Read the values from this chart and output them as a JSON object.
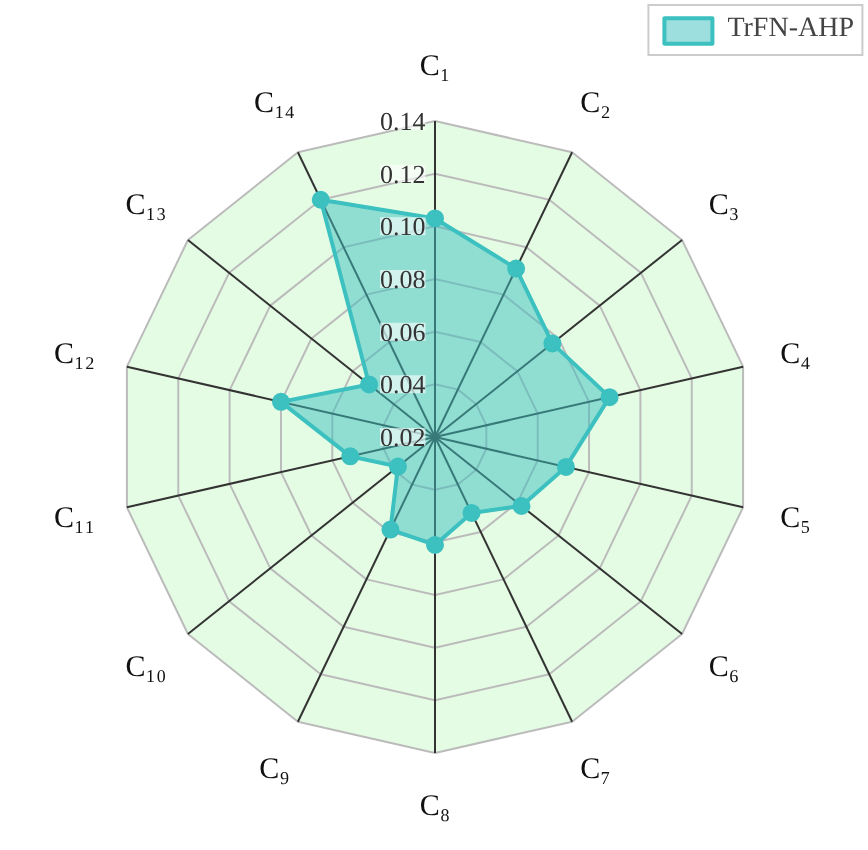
{
  "chart_data": {
    "type": "radar",
    "categories": [
      "C₁",
      "C₂",
      "C₃",
      "C₄",
      "C₅",
      "C₆",
      "C₇",
      "C₈",
      "C₉",
      "C₁₀",
      "C₁₁",
      "C₁₂",
      "C₁₃",
      "C₁₄"
    ],
    "series": [
      {
        "name": "TrFN-AHP",
        "color": "#3cc0c0",
        "values": [
          0.103,
          0.091,
          0.077,
          0.088,
          0.071,
          0.062,
          0.052,
          0.061,
          0.059,
          0.038,
          0.053,
          0.08,
          0.052,
          0.12
        ]
      }
    ],
    "ylim": [
      0.02,
      0.14
    ],
    "yticks": [
      {
        "value": 0.02,
        "label": "0.02"
      },
      {
        "value": 0.04,
        "label": "0.04"
      },
      {
        "value": 0.06,
        "label": "0.06"
      },
      {
        "value": 0.08,
        "label": "0.08"
      },
      {
        "value": 0.1,
        "label": "0.10"
      },
      {
        "value": 0.12,
        "label": "0.12"
      },
      {
        "value": 0.14,
        "label": "0.14"
      }
    ],
    "grid": true,
    "legend": "top right",
    "marker": "circle"
  }
}
